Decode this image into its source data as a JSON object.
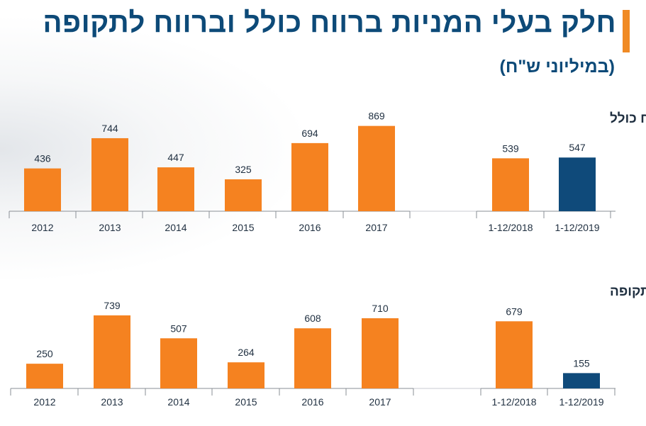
{
  "header": {
    "title": "חלק בעלי המניות ברווח כולל וברווח לתקופה",
    "subtitle": "(במיליוני ש\"ח)"
  },
  "colors": {
    "accent": "#f08a24",
    "bar_orange": "#f58220",
    "bar_navy": "#0f4a7a",
    "title_navy": "#0d4a78",
    "text_dark": "#1f2f40"
  },
  "chart_data": [
    {
      "type": "bar",
      "title": "רווח כולל",
      "categories": [
        "2012",
        "2013",
        "2014",
        "2015",
        "2016",
        "2017",
        "1-12/2018",
        "1-12/2019"
      ],
      "values": [
        436,
        744,
        447,
        325,
        694,
        869,
        539,
        547
      ],
      "highlight": [
        false,
        false,
        false,
        false,
        false,
        false,
        false,
        true
      ]
    },
    {
      "type": "bar",
      "title": "רווח לתקופה",
      "categories": [
        "2012",
        "2013",
        "2014",
        "2015",
        "2016",
        "2017",
        "1-12/2018",
        "1-12/2019"
      ],
      "values": [
        250,
        739,
        507,
        264,
        608,
        710,
        679,
        155
      ],
      "highlight": [
        false,
        false,
        false,
        false,
        false,
        false,
        false,
        true
      ]
    }
  ]
}
